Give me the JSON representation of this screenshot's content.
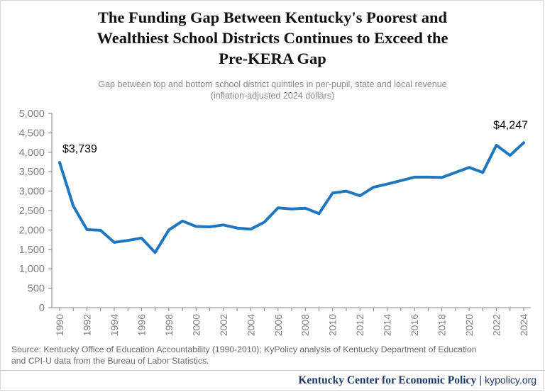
{
  "title_lines": [
    "The Funding Gap Between Kentucky's Poorest and",
    "Wealthiest School Districts Continues to Exceed the",
    "Pre-KERA Gap"
  ],
  "subtitle_lines": [
    "Gap between top and bottom school district quintiles in per-pupil, state and local revenue",
    "(inflation-adjusted 2024 dollars)"
  ],
  "source_lines": [
    "Source: Kentucky Office of Education Accountability (1990-2010); KyPolicy analysis of Kentucky Department of Education",
    "and CPI-U data from the Bureau of Labor Statistics."
  ],
  "footer": {
    "org": "Kentucky Center for Economic Policy",
    "separator": "|",
    "site": "kypolicy.org"
  },
  "colors": {
    "line": "#1f77c1",
    "axis": "#808080",
    "tick_text": "#808080",
    "annotation": "#000000"
  },
  "chart_data": {
    "type": "line",
    "x": [
      1990,
      1991,
      1992,
      1993,
      1994,
      1995,
      1996,
      1997,
      1998,
      1999,
      2000,
      2001,
      2002,
      2003,
      2004,
      2005,
      2006,
      2007,
      2008,
      2009,
      2010,
      2011,
      2012,
      2013,
      2014,
      2015,
      2016,
      2017,
      2018,
      2019,
      2020,
      2021,
      2022,
      2023,
      2024
    ],
    "series": [
      {
        "values": [
          3739,
          2620,
          2010,
          1990,
          1680,
          1730,
          1790,
          1420,
          2000,
          2230,
          2090,
          2080,
          2130,
          2050,
          2020,
          2200,
          2570,
          2540,
          2560,
          2420,
          2950,
          3000,
          2880,
          3100,
          3180,
          3270,
          3360,
          3360,
          3350,
          3480,
          3610,
          3480,
          4180,
          3920,
          4247
        ]
      }
    ],
    "ylim": [
      0,
      5000
    ],
    "yticks": [
      0,
      500,
      1000,
      1500,
      2000,
      2500,
      3000,
      3500,
      4000,
      4500,
      5000
    ],
    "ytick_labels": [
      "0",
      "500",
      "1,000",
      "1,500",
      "2,000",
      "2,500",
      "3,000",
      "3,500",
      "4,000",
      "4,500",
      "5,000"
    ],
    "xticks": [
      1990,
      1992,
      1994,
      1996,
      1998,
      2000,
      2002,
      2004,
      2006,
      2008,
      2010,
      2012,
      2014,
      2016,
      2018,
      2020,
      2022,
      2024
    ],
    "xtick_labels": [
      "1990",
      "1992",
      "1994",
      "1996",
      "1998",
      "2000",
      "2002",
      "2004",
      "2006",
      "2008",
      "2010",
      "2012",
      "2014",
      "2016",
      "2018",
      "2020",
      "2022",
      "2024"
    ],
    "annotations": [
      {
        "x": 1990,
        "text": "$3,739"
      },
      {
        "x": 2024,
        "text": "$4,247"
      }
    ],
    "grid": false,
    "legend": "none",
    "xlabel": "",
    "ylabel": ""
  }
}
